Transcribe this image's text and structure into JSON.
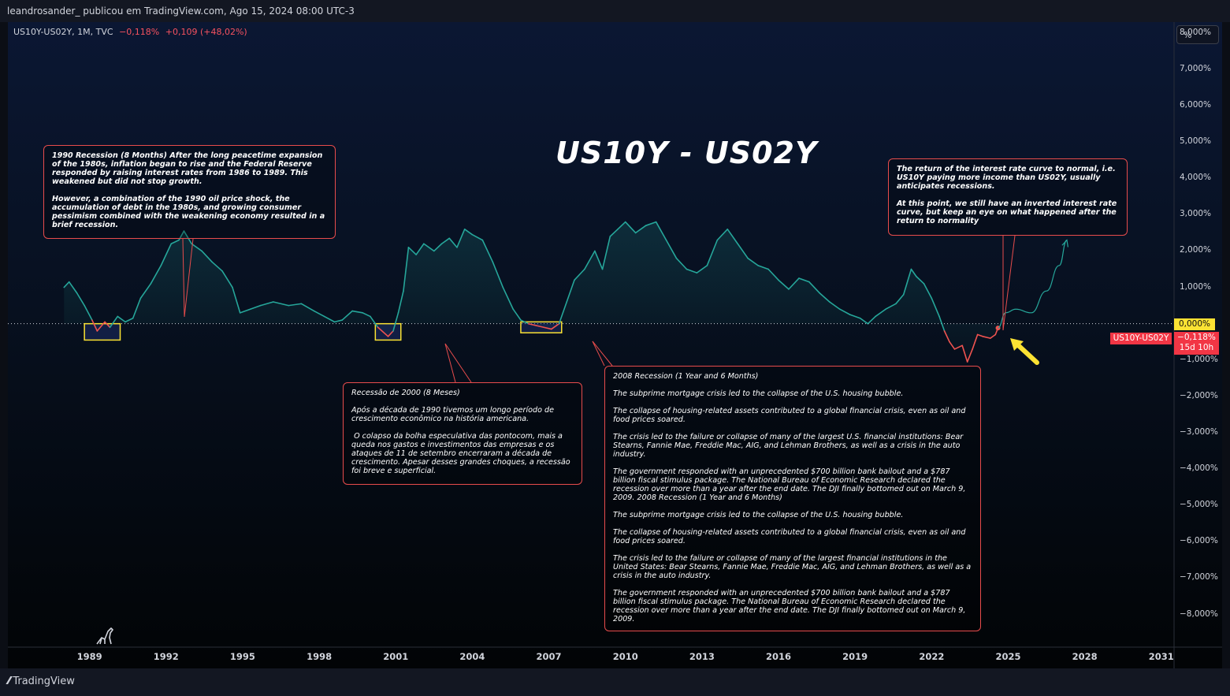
{
  "header": {
    "publisher": "leandrosander_ publicou em TradingView.com, Ago 15, 2024 08:00 UTC-3"
  },
  "symbol": {
    "name": "US10Y-US02Y, 1M, TVC",
    "last": "−0,118%",
    "change": "+0,109 (+48,02%)"
  },
  "title": "US10Y - US02Y",
  "scale_button": "%",
  "price_scale": {
    "zero_label": "0,000%",
    "last_label": "−0,118%",
    "countdown": "15d 10h",
    "series_label": "US10Y-US02Y"
  },
  "brand": "TradingView",
  "annotations": {
    "r1990": "1990 Recession (8 Months) After the long peacetime expansion of the 1980s, inflation began to rise and the Federal Reserve responded by raising interest rates from 1986 to 1989. This weakened but did not stop growth.\n\nHowever, a combination of the 1990 oil price shock, the accumulation of debt in the 1980s, and growing consumer pessimism combined with the weakening economy resulted in a brief recession.",
    "r2000": "Recessão de 2000 (8 Meses)\n\nApós a década de 1990 tivemos um longo período de crescimento econômico na história americana.\n\n O colapso da bolha especulativa das pontocom, mais a queda nos gastos e investimentos das empresas e os ataques de 11 de setembro encerraram a década de crescimento. Apesar desses grandes choques, a recessão foi breve e superficial.",
    "r2008": "2008 Recession (1 Year and 6 Months)\n\nThe subprime mortgage crisis led to the collapse of the U.S. housing bubble.\n\nThe collapse of housing-related assets contributed to a global financial crisis, even as oil and food prices soared.\n\nThe crisis led to the failure or collapse of many of the largest U.S. financial institutions: Bear Stearns, Fannie Mae, Freddie Mac, AIG, and Lehman Brothers, as well as a crisis in the auto industry.\n\nThe government responded with an unprecedented $700 billion bank bailout and a $787 billion fiscal stimulus package. The National Bureau of Economic Research declared the recession over more than a year after the end date. The DJI finally bottomed out on March 9, 2009. 2008 Recession (1 Year and 6 Months)\n\nThe subprime mortgage crisis led to the collapse of the U.S. housing bubble.\n\nThe collapse of housing-related assets contributed to a global financial crisis, even as oil and food prices soared.\n\nThe crisis led to the failure or collapse of many of the largest financial institutions in the United States: Bear Stearns, Fannie Mae, Freddie Mac, AIG, and Lehman Brothers, as well as a crisis in the auto industry.\n\nThe government responded with an unprecedented $700 billion bank bailout and a $787 billion fiscal stimulus package. The National Bureau of Economic Research declared the recession over more than a year after the end date. The DJI finally bottomed out on March 9, 2009.",
    "normal": "The return of the interest rate curve to normal, i.e. US10Y paying more income than US02Y, usually anticipates recessions.\n\nAt this point, we still have an inverted interest rate curve, but keep an eye on what happened after the return to normality"
  },
  "chart_data": {
    "type": "line",
    "title": "US10Y - US02Y",
    "series_name": "US10Y-US02Y",
    "xlim": [
      1985.8,
      2031.5
    ],
    "ylim": [
      -8.9,
      8.3
    ],
    "y_ticks": [
      8,
      7,
      6,
      5,
      4,
      3,
      2,
      1,
      0,
      -1,
      -2,
      -3,
      -4,
      -5,
      -6,
      -7,
      -8
    ],
    "y_tick_labels": [
      "8,000%",
      "7,000%",
      "6,000%",
      "5,000%",
      "4,000%",
      "3,000%",
      "2,000%",
      "1,000%",
      "0,000%",
      "−1,000%",
      "−2,000%",
      "−3,000%",
      "−4,000%",
      "−5,000%",
      "−6,000%",
      "−7,000%",
      "−8,000%"
    ],
    "x_ticks": [
      1989,
      1992,
      1995,
      1998,
      2001,
      2004,
      2007,
      2010,
      2013,
      2016,
      2019,
      2022,
      2025,
      2028,
      2031
    ],
    "x_tick_labels": [
      "1989",
      "1992",
      "1995",
      "1998",
      "2001",
      "2004",
      "2007",
      "2010",
      "2013",
      "2016",
      "2019",
      "2022",
      "2025",
      "2028",
      "2031"
    ],
    "colors": {
      "positive": "#26a69a",
      "negative": "#ef5350",
      "highlight": "#fbe233",
      "annotation_border": "#e84c4c"
    },
    "points": [
      [
        1988.0,
        1.0
      ],
      [
        1988.2,
        1.15
      ],
      [
        1988.5,
        0.85
      ],
      [
        1988.8,
        0.5
      ],
      [
        1989.1,
        0.1
      ],
      [
        1989.3,
        -0.2
      ],
      [
        1989.6,
        0.05
      ],
      [
        1989.8,
        -0.1
      ],
      [
        1990.1,
        0.2
      ],
      [
        1990.4,
        0.05
      ],
      [
        1990.7,
        0.15
      ],
      [
        1991.0,
        0.7
      ],
      [
        1991.4,
        1.1
      ],
      [
        1991.8,
        1.6
      ],
      [
        1992.2,
        2.2
      ],
      [
        1992.5,
        2.3
      ],
      [
        1992.7,
        2.55
      ],
      [
        1993.0,
        2.2
      ],
      [
        1993.4,
        2.0
      ],
      [
        1993.8,
        1.7
      ],
      [
        1994.2,
        1.45
      ],
      [
        1994.6,
        1.0
      ],
      [
        1994.9,
        0.3
      ],
      [
        1995.3,
        0.4
      ],
      [
        1995.7,
        0.5
      ],
      [
        1996.2,
        0.6
      ],
      [
        1996.8,
        0.5
      ],
      [
        1997.3,
        0.55
      ],
      [
        1997.8,
        0.35
      ],
      [
        1998.2,
        0.2
      ],
      [
        1998.6,
        0.05
      ],
      [
        1998.9,
        0.1
      ],
      [
        1999.3,
        0.35
      ],
      [
        1999.7,
        0.3
      ],
      [
        2000.0,
        0.2
      ],
      [
        2000.3,
        -0.1
      ],
      [
        2000.7,
        -0.35
      ],
      [
        2000.9,
        -0.2
      ],
      [
        2001.1,
        0.3
      ],
      [
        2001.3,
        0.9
      ],
      [
        2001.5,
        2.1
      ],
      [
        2001.8,
        1.9
      ],
      [
        2002.1,
        2.2
      ],
      [
        2002.5,
        2.0
      ],
      [
        2002.8,
        2.2
      ],
      [
        2003.1,
        2.35
      ],
      [
        2003.4,
        2.1
      ],
      [
        2003.7,
        2.6
      ],
      [
        2004.0,
        2.45
      ],
      [
        2004.4,
        2.3
      ],
      [
        2004.8,
        1.7
      ],
      [
        2005.2,
        1.0
      ],
      [
        2005.6,
        0.4
      ],
      [
        2005.9,
        0.1
      ],
      [
        2006.2,
        0.0
      ],
      [
        2006.5,
        -0.05
      ],
      [
        2006.8,
        -0.1
      ],
      [
        2007.1,
        -0.15
      ],
      [
        2007.4,
        0.0
      ],
      [
        2007.7,
        0.6
      ],
      [
        2008.0,
        1.2
      ],
      [
        2008.4,
        1.5
      ],
      [
        2008.8,
        2.0
      ],
      [
        2009.1,
        1.5
      ],
      [
        2009.4,
        2.4
      ],
      [
        2009.7,
        2.6
      ],
      [
        2010.0,
        2.8
      ],
      [
        2010.4,
        2.5
      ],
      [
        2010.8,
        2.7
      ],
      [
        2011.2,
        2.8
      ],
      [
        2011.6,
        2.3
      ],
      [
        2012.0,
        1.8
      ],
      [
        2012.4,
        1.5
      ],
      [
        2012.8,
        1.4
      ],
      [
        2013.2,
        1.6
      ],
      [
        2013.6,
        2.3
      ],
      [
        2014.0,
        2.6
      ],
      [
        2014.4,
        2.2
      ],
      [
        2014.8,
        1.8
      ],
      [
        2015.2,
        1.6
      ],
      [
        2015.6,
        1.5
      ],
      [
        2016.0,
        1.2
      ],
      [
        2016.4,
        0.95
      ],
      [
        2016.8,
        1.25
      ],
      [
        2017.2,
        1.15
      ],
      [
        2017.6,
        0.85
      ],
      [
        2018.0,
        0.6
      ],
      [
        2018.4,
        0.4
      ],
      [
        2018.8,
        0.25
      ],
      [
        2019.2,
        0.15
      ],
      [
        2019.5,
        0.0
      ],
      [
        2019.8,
        0.2
      ],
      [
        2020.2,
        0.4
      ],
      [
        2020.6,
        0.55
      ],
      [
        2020.9,
        0.8
      ],
      [
        2021.2,
        1.5
      ],
      [
        2021.4,
        1.3
      ],
      [
        2021.7,
        1.1
      ],
      [
        2022.0,
        0.7
      ],
      [
        2022.3,
        0.2
      ],
      [
        2022.5,
        -0.2
      ],
      [
        2022.7,
        -0.5
      ],
      [
        2022.9,
        -0.7
      ],
      [
        2023.2,
        -0.6
      ],
      [
        2023.4,
        -1.05
      ],
      [
        2023.6,
        -0.7
      ],
      [
        2023.8,
        -0.3
      ],
      [
        2024.0,
        -0.35
      ],
      [
        2024.3,
        -0.4
      ],
      [
        2024.5,
        -0.3
      ],
      [
        2024.6,
        -0.118
      ]
    ],
    "projection": [
      [
        2024.6,
        -0.118
      ],
      [
        2024.9,
        0.3
      ],
      [
        2025.3,
        0.4
      ],
      [
        2025.9,
        0.3
      ],
      [
        2026.5,
        0.9
      ],
      [
        2027.0,
        1.6
      ],
      [
        2027.3,
        2.3
      ]
    ],
    "recession_boxes": [
      {
        "label": "1990",
        "x": [
          1988.8,
          1990.2
        ],
        "y": [
          -0.45,
          0.0
        ]
      },
      {
        "label": "2000",
        "x": [
          2000.2,
          2001.2
        ],
        "y": [
          -0.45,
          0.0
        ]
      },
      {
        "label": "2008",
        "x": [
          2005.9,
          2007.5
        ],
        "y": [
          -0.25,
          0.05
        ]
      }
    ]
  }
}
